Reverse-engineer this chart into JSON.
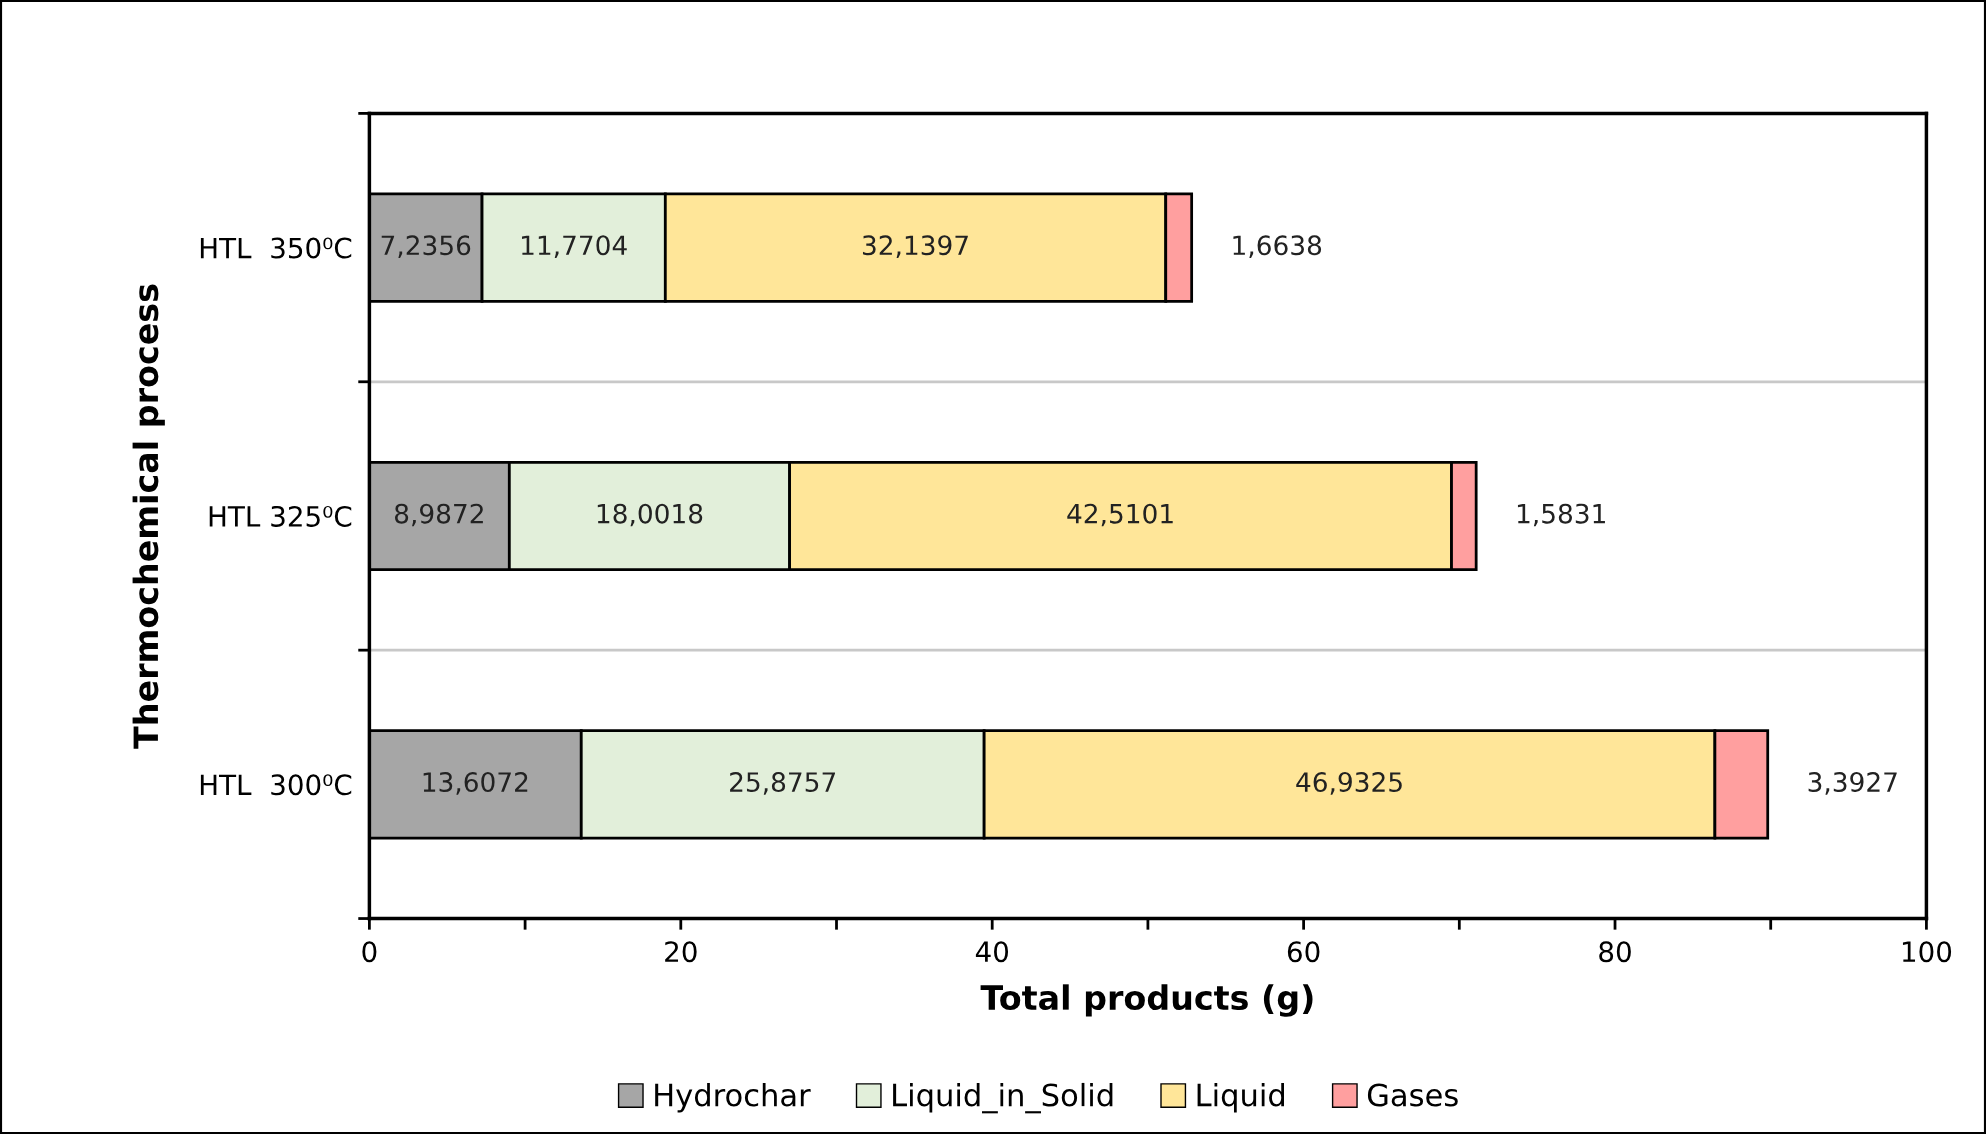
{
  "chart_data": {
    "type": "bar",
    "orientation": "horizontal",
    "stacked": true,
    "xlabel": "Total products (g)",
    "ylabel": "Thermochemical process",
    "categories": [
      "HTL  350⁰C",
      "HTL 325⁰C",
      "HTL  300⁰C"
    ],
    "series": [
      {
        "name": "Hydrochar",
        "color": "#a6a6a6",
        "values": [
          7.2356,
          8.9872,
          13.6072
        ],
        "value_labels": [
          "7,2356",
          "8,9872",
          "13,6072"
        ]
      },
      {
        "name": "Liquid_in_Solid",
        "color": "#e2efda",
        "values": [
          11.7704,
          18.0018,
          25.8757
        ],
        "value_labels": [
          "11,7704",
          "18,0018",
          "25,8757"
        ]
      },
      {
        "name": "Liquid",
        "color": "#ffe699",
        "values": [
          32.1397,
          42.5101,
          46.9325
        ],
        "value_labels": [
          "32,1397",
          "42,5101",
          "46,9325"
        ]
      },
      {
        "name": "Gases",
        "color": "#ff9f9f",
        "values": [
          1.6638,
          1.5831,
          3.3927
        ],
        "value_labels": [
          "1,6638",
          "1,5831",
          "3,3927"
        ]
      }
    ],
    "xlim": [
      0,
      100
    ],
    "xticks": [
      0,
      {
        "value": 10,
        "label": null
      },
      20,
      {
        "value": 30,
        "label": null
      },
      40,
      {
        "value": 50,
        "label": null
      },
      60,
      {
        "value": 70,
        "label": null
      },
      80,
      {
        "value": 90,
        "label": null
      },
      100
    ],
    "grid": "y",
    "legend": "bottom"
  }
}
